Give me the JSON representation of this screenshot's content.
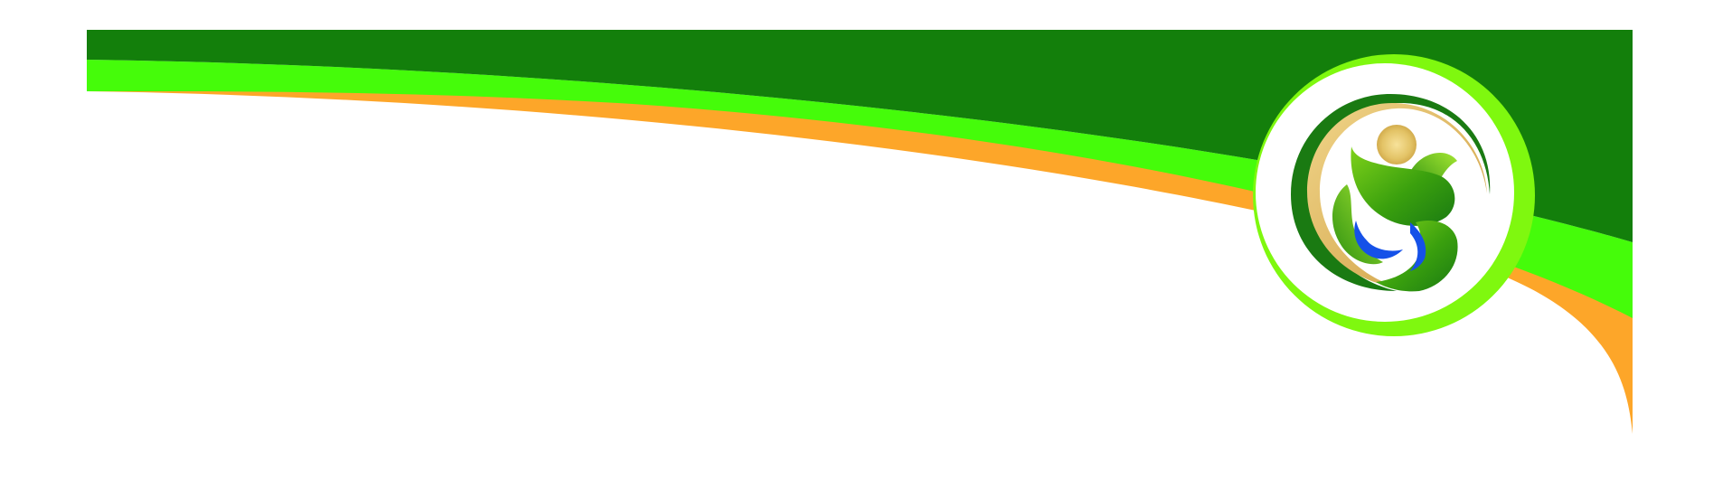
{
  "banner": {
    "colors": {
      "background": "#ffffff",
      "dark_green": "#137f0b",
      "lime_green": "#45fc0a",
      "orange": "#fda629",
      "ring_green": "#7ff80f",
      "leaf_green": "#48b50e",
      "leaf_dark": "#1a7a12",
      "gold": "#e3c366",
      "water_blue": "#1551e8"
    },
    "logo": {
      "icon": "leaf-s-emblem-icon",
      "elements": [
        "gold-dot",
        "green-leaves",
        "blue-water-drop",
        "gold-crescent-ring"
      ]
    }
  }
}
